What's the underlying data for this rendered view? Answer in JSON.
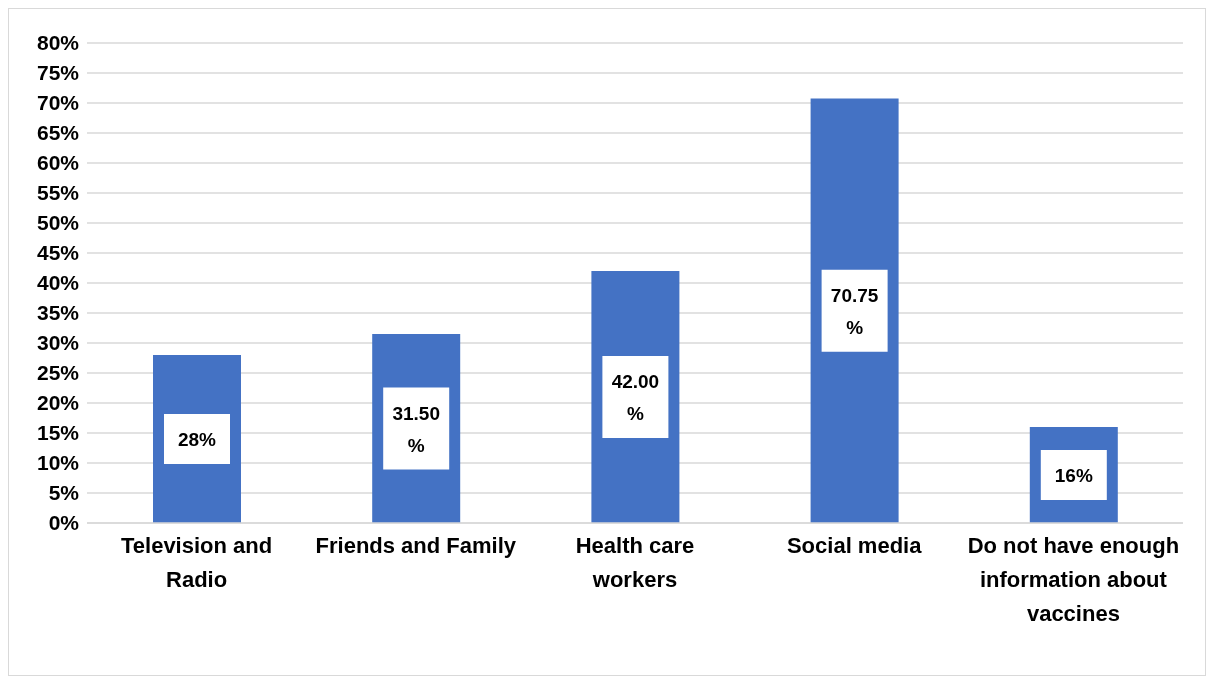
{
  "chart_data": {
    "type": "bar",
    "categories": [
      "Television and Radio",
      "Friends and Family",
      "Health care workers",
      "Social media",
      "Do not have enough information about vaccines"
    ],
    "values": [
      28,
      31.5,
      42,
      70.75,
      16
    ],
    "value_labels": [
      "28%",
      "31.50 %",
      "42.00 %",
      "70.75 %",
      "16%"
    ],
    "color": "#4472c4",
    "ylim": [
      0,
      80
    ],
    "yticks": [
      {
        "value": 0,
        "label": "0%"
      },
      {
        "value": 5,
        "label": "5%"
      },
      {
        "value": 10,
        "label": "10%"
      },
      {
        "value": 15,
        "label": "15%"
      },
      {
        "value": 20,
        "label": "20%"
      },
      {
        "value": 25,
        "label": "25%"
      },
      {
        "value": 30,
        "label": "30%"
      },
      {
        "value": 35,
        "label": "35%"
      },
      {
        "value": 40,
        "label": "40%"
      },
      {
        "value": 45,
        "label": "45%"
      },
      {
        "value": 50,
        "label": "50%"
      },
      {
        "value": 55,
        "label": "55%"
      },
      {
        "value": 60,
        "label": "60%"
      },
      {
        "value": 65,
        "label": "65%"
      },
      {
        "value": 70,
        "label": "70%"
      },
      {
        "value": 75,
        "label": "75%"
      },
      {
        "value": 80,
        "label": "80%"
      }
    ],
    "grid": "y",
    "legend": false
  }
}
